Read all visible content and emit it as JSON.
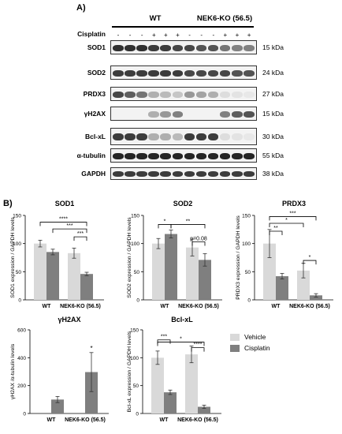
{
  "figure": {
    "panel_a_label": "A)",
    "panel_b_label": "B)",
    "wt_label": "WT",
    "ko_label": "NEK6-KO (56.5)",
    "cisplatin_label": "Cisplatin",
    "cisplatin_signs": [
      "-",
      "-",
      "-",
      "+",
      "+",
      "+",
      "-",
      "-",
      "-",
      "+",
      "+",
      "+"
    ],
    "blots": [
      {
        "name": "SOD1",
        "kda": "15 kDa"
      },
      {
        "name": "SOD2",
        "kda": "24 kDa"
      },
      {
        "name": "PRDX3",
        "kda": "27 kDa"
      },
      {
        "name": "γH2AX",
        "kda": "15 kDa"
      },
      {
        "name": "Bcl-xL",
        "kda": "30 kDa"
      },
      {
        "name": "α-tubulin",
        "kda": "55 kDa"
      },
      {
        "name": "GAPDH",
        "kda": "38 kDa"
      }
    ],
    "legend": {
      "vehicle": "Vehicle",
      "cisplatin": "Cisplatin",
      "vehicle_color": "#d9d9d9",
      "cisplatin_color": "#7f7f7f"
    }
  },
  "chart_data": [
    {
      "type": "bar",
      "title": "SOD1",
      "ylabel": "SOD1 expression / GAPDH levels",
      "categories": [
        "WT",
        "NEK6-KO (56.5)"
      ],
      "ylim": [
        0,
        150
      ],
      "yticks": [
        0,
        50,
        100,
        150
      ],
      "series": [
        {
          "name": "Vehicle",
          "values": [
            100,
            83
          ],
          "errors": [
            6,
            9
          ]
        },
        {
          "name": "Cisplatin",
          "values": [
            85,
            46
          ],
          "errors": [
            5,
            3
          ]
        }
      ],
      "annotations": [
        "****",
        "***",
        "***"
      ]
    },
    {
      "type": "bar",
      "title": "SOD2",
      "ylabel": "SOD2 expression / GAPDH levels",
      "categories": [
        "WT",
        "NEK6-KO (56.5)"
      ],
      "ylim": [
        0,
        150
      ],
      "yticks": [
        0,
        50,
        100,
        150
      ],
      "series": [
        {
          "name": "Vehicle",
          "values": [
            100,
            93
          ],
          "errors": [
            9,
            15
          ]
        },
        {
          "name": "Cisplatin",
          "values": [
            117,
            71
          ],
          "errors": [
            7,
            11
          ]
        }
      ],
      "annotations": [
        "*",
        "**",
        "p=0.08"
      ]
    },
    {
      "type": "bar",
      "title": "PRDX3",
      "ylabel": "PRDX3 expression / GAPDH levels",
      "categories": [
        "WT",
        "NEK6-KO (56.5)"
      ],
      "ylim": [
        0,
        150
      ],
      "yticks": [
        0,
        50,
        100,
        150
      ],
      "series": [
        {
          "name": "Vehicle",
          "values": [
            100,
            52
          ],
          "errors": [
            25,
            13
          ]
        },
        {
          "name": "Cisplatin",
          "values": [
            42,
            8
          ],
          "errors": [
            5,
            3
          ]
        }
      ],
      "annotations": [
        "***",
        "*",
        "**",
        "*"
      ]
    },
    {
      "type": "bar",
      "title": "γH2AX",
      "ylabel": "γH2AX /α-tubulin levels",
      "categories": [
        "WT",
        "NEK6-KO (56.5)"
      ],
      "ylim": [
        0,
        600
      ],
      "yticks": [
        0,
        200,
        400,
        600
      ],
      "series": [
        {
          "name": "Vehicle",
          "values": [
            0,
            0
          ],
          "errors": [
            0,
            0
          ]
        },
        {
          "name": "Cisplatin",
          "values": [
            100,
            297
          ],
          "errors": [
            22,
            140
          ]
        }
      ],
      "annotations": [
        "*"
      ]
    },
    {
      "type": "bar",
      "title": "Bcl-xL",
      "ylabel": "Bcl-xL expression / GAPDH levels",
      "categories": [
        "WT",
        "NEK6-KO (56.5)"
      ],
      "ylim": [
        0,
        150
      ],
      "yticks": [
        0,
        50,
        100,
        150
      ],
      "series": [
        {
          "name": "Vehicle",
          "values": [
            100,
            106
          ],
          "errors": [
            12,
            15
          ]
        },
        {
          "name": "Cisplatin",
          "values": [
            38,
            12
          ],
          "errors": [
            4,
            3
          ]
        }
      ],
      "annotations": [
        "***",
        "*",
        "****"
      ]
    }
  ]
}
